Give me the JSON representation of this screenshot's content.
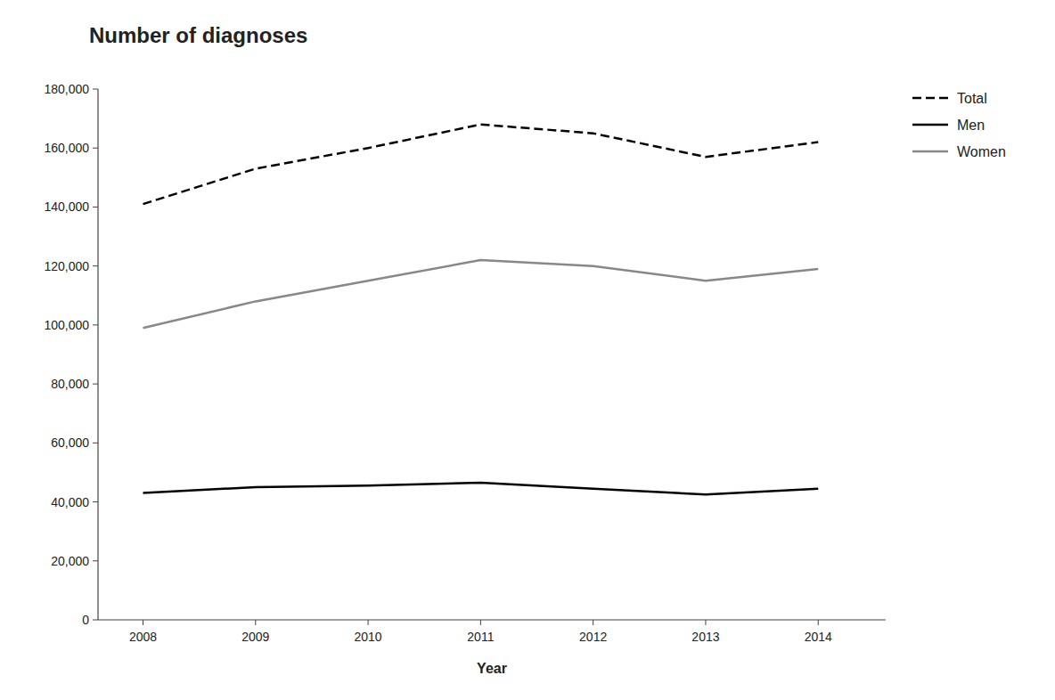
{
  "chart_data": {
    "type": "line",
    "title": "Number of diagnoses",
    "xlabel": "Year",
    "x": [
      2008,
      2009,
      2010,
      2011,
      2012,
      2013,
      2014
    ],
    "series": [
      {
        "name": "Total",
        "color": "#000000",
        "line_style": "dashed",
        "values": [
          141000,
          153000,
          160000,
          168000,
          165000,
          157000,
          162000
        ]
      },
      {
        "name": "Men",
        "color": "#000000",
        "line_style": "solid",
        "values": [
          43000,
          45000,
          45500,
          46500,
          44500,
          42500,
          44500
        ]
      },
      {
        "name": "Women",
        "color": "#888888",
        "line_style": "solid",
        "values": [
          99000,
          108000,
          115000,
          122000,
          120000,
          115000,
          119000
        ]
      }
    ],
    "xlim": [
      2007.6,
      2014.6
    ],
    "xticks": [
      2008,
      2009,
      2010,
      2011,
      2012,
      2013,
      2014
    ],
    "ylim": [
      0,
      180000
    ],
    "yticks": [
      0,
      {
        "value": 20000,
        "label": "20,000"
      },
      {
        "value": 40000,
        "label": "40,000"
      },
      {
        "value": 60000,
        "label": "60,000"
      },
      {
        "value": 80000,
        "label": "80,000"
      },
      {
        "value": 100000,
        "label": "100,000"
      },
      {
        "value": 120000,
        "label": "120,000"
      },
      {
        "value": 140000,
        "label": "140,000"
      },
      {
        "value": 160000,
        "label": "160,000"
      },
      {
        "value": 180000,
        "label": "180,000"
      }
    ],
    "grid": false,
    "legend": "upper right"
  }
}
